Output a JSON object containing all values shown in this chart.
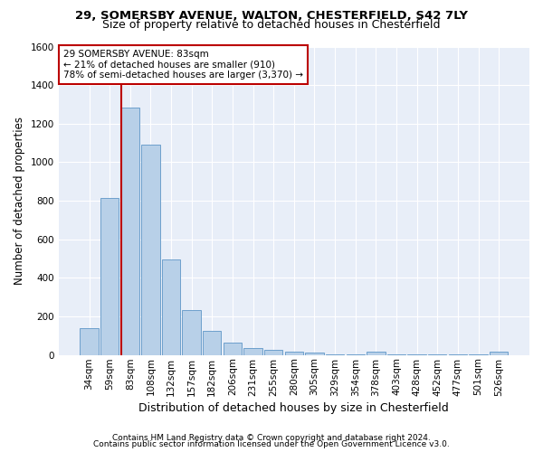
{
  "title1": "29, SOMERSBY AVENUE, WALTON, CHESTERFIELD, S42 7LY",
  "title2": "Size of property relative to detached houses in Chesterfield",
  "xlabel": "Distribution of detached houses by size in Chesterfield",
  "ylabel": "Number of detached properties",
  "footnote1": "Contains HM Land Registry data © Crown copyright and database right 2024.",
  "footnote2": "Contains public sector information licensed under the Open Government Licence v3.0.",
  "annotation_line1": "29 SOMERSBY AVENUE: 83sqm",
  "annotation_line2": "← 21% of detached houses are smaller (910)",
  "annotation_line3": "78% of semi-detached houses are larger (3,370) →",
  "bar_color": "#b8d0e8",
  "bar_edge_color": "#6da0cc",
  "marker_color": "#bb0000",
  "background_color": "#e8eef8",
  "grid_color": "#ffffff",
  "categories": [
    "34sqm",
    "59sqm",
    "83sqm",
    "108sqm",
    "132sqm",
    "157sqm",
    "182sqm",
    "206sqm",
    "231sqm",
    "255sqm",
    "280sqm",
    "305sqm",
    "329sqm",
    "354sqm",
    "378sqm",
    "403sqm",
    "428sqm",
    "452sqm",
    "477sqm",
    "501sqm",
    "526sqm"
  ],
  "values": [
    140,
    815,
    1285,
    1090,
    495,
    235,
    125,
    65,
    38,
    27,
    15,
    12,
    2,
    2,
    17,
    2,
    2,
    2,
    2,
    2,
    15
  ],
  "ylim": [
    0,
    1600
  ],
  "yticks": [
    0,
    200,
    400,
    600,
    800,
    1000,
    1200,
    1400,
    1600
  ],
  "marker_bar_index": 2,
  "title1_fontsize": 9.5,
  "title2_fontsize": 9,
  "xlabel_fontsize": 9,
  "ylabel_fontsize": 8.5,
  "tick_fontsize": 7.5,
  "annotation_fontsize": 7.5,
  "footnote_fontsize": 6.5
}
